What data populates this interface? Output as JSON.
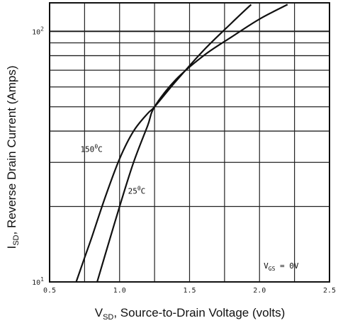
{
  "chart_data": {
    "type": "line",
    "title": "",
    "xlabel": {
      "main": "V",
      "sub": "SD",
      "rest": ", Source-to-Drain Voltage (volts)"
    },
    "ylabel": {
      "main": "I",
      "sub": "SD",
      "rest": ", Reverse Drain Current (Amps)"
    },
    "xlim": [
      0.5,
      2.5
    ],
    "ylim": [
      10,
      130
    ],
    "yscale": "log",
    "grid": true,
    "x_ticks": [
      {
        "value": 0.5,
        "label": "0.5"
      },
      {
        "value": 1.0,
        "label": "1.0"
      },
      {
        "value": 1.5,
        "label": "1.5"
      },
      {
        "value": 2.0,
        "label": "2.0"
      },
      {
        "value": 2.5,
        "label": "2.5"
      }
    ],
    "y_ticks": [
      {
        "value": 10,
        "label": "10",
        "exp": "1"
      },
      {
        "value": 100,
        "label": "10",
        "exp": "2"
      }
    ],
    "y_gridlines": [
      20,
      30,
      40,
      50,
      60,
      70,
      80,
      90,
      100
    ],
    "x_gridlines": [
      0.75,
      1.0,
      1.25,
      1.5,
      1.75,
      2.0,
      2.25
    ],
    "annotations": [
      {
        "label": "150",
        "sup": "0",
        "unit": "C",
        "x": 0.72,
        "y": 33
      },
      {
        "label": "25",
        "sup": "0",
        "unit": "C",
        "x": 1.06,
        "y": 22.5
      },
      {
        "label": "V",
        "sub": "GS",
        "rest": " = 0V",
        "x": 2.03,
        "y": 11.3
      }
    ],
    "series": [
      {
        "name": "150°C",
        "x": [
          0.69,
          0.75,
          0.8,
          0.9,
          1.0,
          1.1,
          1.2,
          1.25,
          1.4,
          1.6,
          1.8,
          1.94
        ],
        "y": [
          10,
          12.5,
          15,
          22,
          31,
          40,
          47,
          50,
          63,
          84,
          108,
          128
        ]
      },
      {
        "name": "25°C",
        "x": [
          0.84,
          0.9,
          1.0,
          1.1,
          1.2,
          1.25,
          1.4,
          1.6,
          1.8,
          2.0,
          2.2
        ],
        "y": [
          10,
          13,
          20,
          30,
          42,
          50,
          64,
          80,
          95,
          112,
          128
        ]
      }
    ]
  }
}
